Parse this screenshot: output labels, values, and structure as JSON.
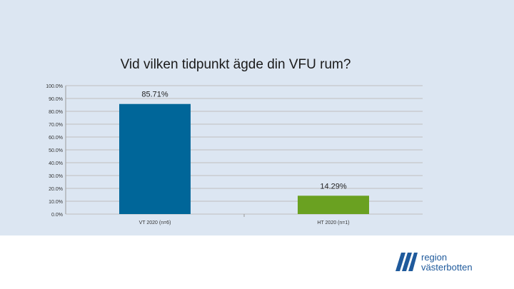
{
  "chart_data": {
    "type": "bar",
    "title": "Vid vilken tidpunkt ägde din VFU rum?",
    "categories": [
      "VT 2020 (n=6)",
      "HT 2020 (n=1)"
    ],
    "values": [
      85.71,
      14.29
    ],
    "data_labels": [
      "85.71%",
      "14.29%"
    ],
    "colors": [
      "#006699",
      "#6aa121"
    ],
    "ylim": [
      0,
      100
    ],
    "yticks": [
      0,
      10,
      20,
      30,
      40,
      50,
      60,
      70,
      80,
      90,
      100
    ],
    "ytick_labels": [
      "0.0%",
      "10.0%",
      "20.0%",
      "30.0%",
      "40.0%",
      "50.0%",
      "60.0%",
      "70.0%",
      "80.0%",
      "90.0%",
      "100.0%"
    ],
    "grid": true,
    "xlabel": "",
    "ylabel": ""
  },
  "logo": {
    "line1": "region",
    "line2": "västerbotten",
    "color": "#1f5a9c"
  }
}
